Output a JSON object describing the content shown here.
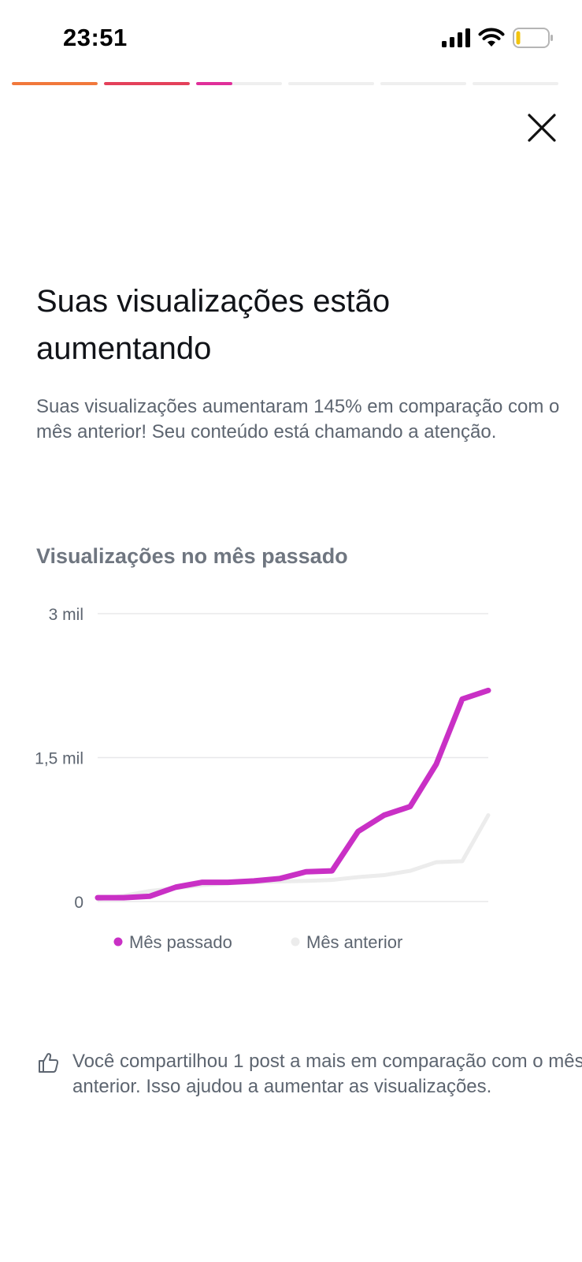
{
  "status_bar": {
    "time": "23:51",
    "icons": [
      "cellular-signal-icon",
      "wifi-icon",
      "battery-low-icon"
    ]
  },
  "story_progress": {
    "segments": [
      {
        "fill": 1.0,
        "color": "#f1783b"
      },
      {
        "fill": 1.0,
        "color": "#e4405a"
      },
      {
        "fill": 0.42,
        "color": "#e02f9a"
      },
      {
        "fill": 0.0,
        "color": "#e02f9a"
      },
      {
        "fill": 0.0,
        "color": "#e02f9a"
      },
      {
        "fill": 0.0,
        "color": "#e02f9a"
      }
    ]
  },
  "headline": "Suas visualizações estão aumentando",
  "description": "Suas visualizações aumentaram 145% em comparação com o mês anterior! Seu conteúdo está chamando a atenção.",
  "chart_title": "Visualizações no mês passado",
  "chart_data": {
    "type": "line",
    "title": "",
    "xlabel": "",
    "ylabel": "",
    "ylim": [
      0,
      3000
    ],
    "yticks": [
      {
        "value": 0,
        "label": "0"
      },
      {
        "value": 1500,
        "label": "1,5 mil"
      },
      {
        "value": 3000,
        "label": "3 mil"
      }
    ],
    "grid": true,
    "legend": "bottom",
    "x": [
      1,
      2,
      3,
      4,
      5,
      6,
      7,
      8,
      9,
      10,
      11,
      12,
      13,
      14,
      15,
      16
    ],
    "series": [
      {
        "name": "Mês passado",
        "color": "#c930c5",
        "values": [
          40,
          40,
          55,
          150,
          200,
          200,
          215,
          240,
          310,
          320,
          730,
          900,
          990,
          1430,
          2110,
          2200
        ]
      },
      {
        "name": "Mês anterior",
        "color": "#ececec",
        "values": [
          25,
          60,
          110,
          140,
          170,
          190,
          200,
          210,
          215,
          225,
          255,
          275,
          320,
          410,
          420,
          900
        ]
      }
    ]
  },
  "footnote": "Você compartilhou 1 post a mais em comparação com o mês anterior. Isso ajudou a aumentar as visualizações.",
  "colors": {
    "accent": "#c930c5",
    "text_secondary": "#5d6570"
  }
}
